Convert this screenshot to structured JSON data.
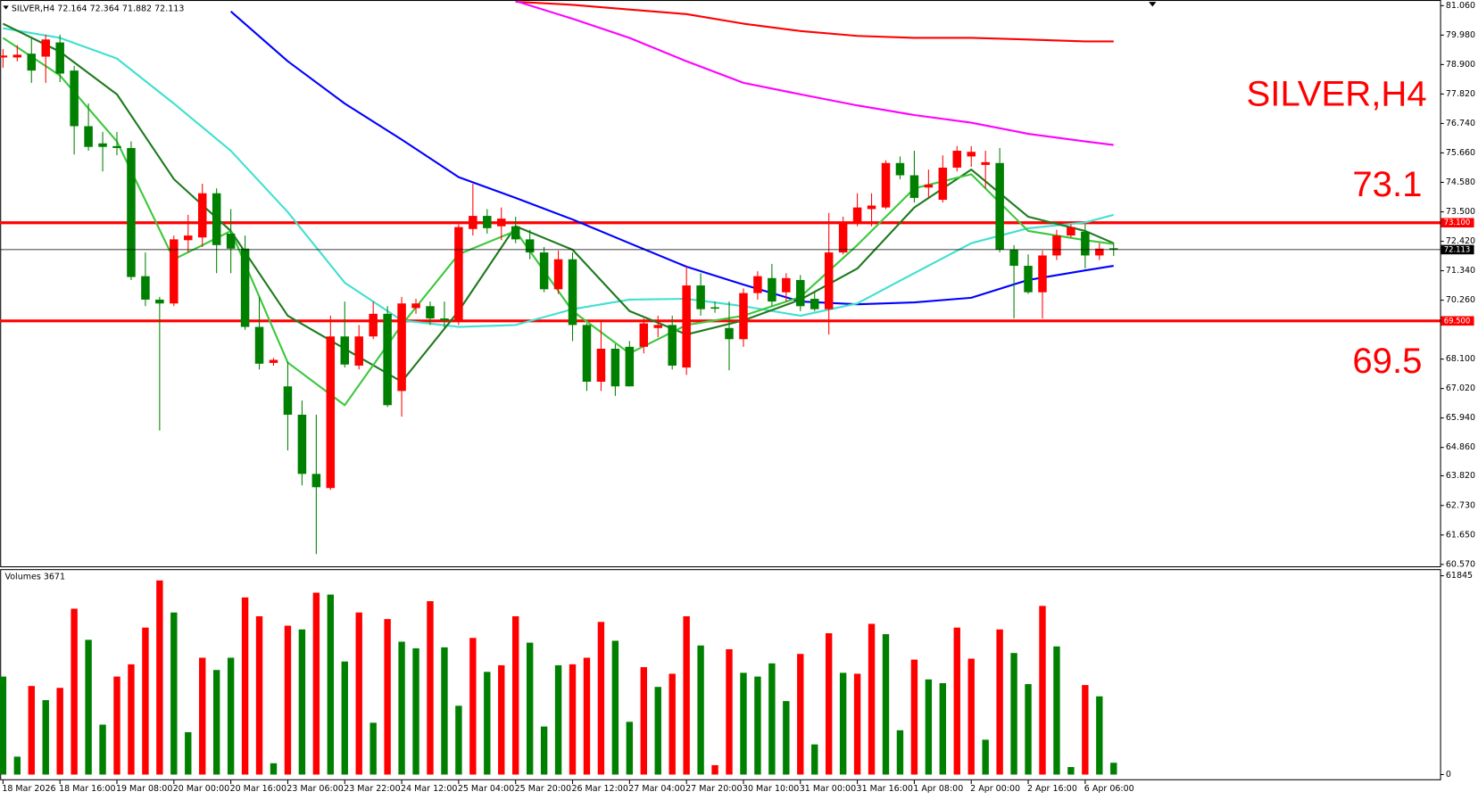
{
  "chart_data": [
    {
      "type": "candlestick",
      "symbol": "SILVER,H4",
      "categories": [
        "18 Mar 2026",
        null,
        null,
        null,
        "18 Mar 16:00",
        null,
        null,
        null,
        "19 Mar 08:00",
        null,
        null,
        null,
        "20 Mar 00:00",
        null,
        null,
        null,
        "20 Mar 16:00",
        null,
        null,
        null,
        "23 Mar 06:00",
        null,
        null,
        null,
        "23 Mar 22:00",
        null,
        null,
        null,
        "24 Mar 12:00",
        null,
        null,
        null,
        "25 Mar 04:00",
        null,
        null,
        null,
        "25 Mar 20:00",
        null,
        null,
        null,
        "26 Mar 12:00",
        null,
        null,
        null,
        "27 Mar 04:00",
        null,
        null,
        null,
        "27 Mar 20:00",
        null,
        null,
        null,
        "30 Mar 10:00",
        null,
        null,
        null,
        "31 Mar 00:00",
        null,
        null,
        null,
        "31 Mar 16:00",
        null,
        null,
        null,
        "1 Apr 08:00",
        null,
        null,
        null,
        "2 Apr 00:00",
        null,
        null,
        null,
        "2 Apr 16:00",
        null,
        null,
        null,
        "6 Apr 06:00",
        null,
        null
      ],
      "open": [
        79.16,
        79.16,
        79.3,
        79.19,
        79.71,
        78.68,
        76.64,
        76.01,
        75.91,
        75.84,
        71.14,
        70.28,
        70.14,
        72.46,
        72.56,
        74.18,
        72.7,
        72.15,
        69.28,
        67.96,
        67.1,
        66.06,
        63.89,
        63.37,
        68.93,
        67.86,
        68.93,
        69.76,
        66.93,
        69.97,
        70.04,
        69.59,
        69.52,
        72.87,
        73.35,
        72.97,
        72.97,
        72.49,
        72.01,
        70.66,
        71.76,
        69.35,
        67.27,
        68.48,
        68.55,
        68.55,
        69.24,
        69.35,
        67.79,
        70.8,
        70.0,
        69.24,
        68.83,
        70.52,
        71.07,
        70.55,
        71.0,
        70.31,
        69.93,
        72.01,
        73.08,
        73.6,
        73.66,
        75.29,
        74.84,
        74.39,
        73.94,
        75.12,
        75.53,
        75.22,
        75.29,
        72.11,
        71.52,
        70.55,
        71.9,
        72.63,
        72.77,
        71.9,
        72.164
      ],
      "high": [
        79.47,
        79.61,
        79.88,
        79.99,
        79.99,
        78.85,
        77.47,
        76.43,
        76.43,
        76.08,
        72.01,
        70.38,
        72.63,
        73.39,
        74.53,
        74.36,
        73.6,
        72.63,
        70.38,
        68.14,
        68.0,
        66.58,
        66.06,
        69.69,
        70.21,
        69.35,
        70.21,
        70.04,
        70.38,
        70.31,
        70.21,
        70.21,
        73.04,
        74.53,
        73.6,
        73.66,
        73.32,
        72.84,
        72.21,
        72.08,
        72.01,
        69.41,
        69.52,
        68.65,
        68.76,
        69.59,
        69.69,
        69.69,
        71.49,
        71.25,
        70.21,
        70.21,
        70.69,
        71.32,
        71.59,
        71.25,
        71.18,
        70.55,
        73.46,
        73.32,
        74.18,
        74.18,
        75.39,
        75.53,
        75.74,
        75.05,
        75.57,
        75.91,
        75.91,
        75.74,
        75.84,
        72.28,
        71.94,
        72.08,
        72.84,
        73.04,
        73.04,
        72.35,
        72.364
      ],
      "low": [
        78.78,
        79.02,
        78.23,
        78.23,
        78.26,
        75.6,
        75.74,
        74.98,
        75.57,
        71.0,
        70.04,
        65.48,
        70.04,
        72.01,
        72.21,
        71.25,
        71.25,
        69.17,
        67.72,
        67.86,
        64.75,
        63.47,
        60.95,
        63.3,
        67.79,
        67.72,
        68.83,
        66.34,
        65.99,
        69.76,
        69.35,
        69.24,
        69.35,
        72.63,
        72.7,
        72.46,
        72.35,
        71.76,
        70.55,
        70.49,
        68.76,
        66.93,
        66.93,
        66.75,
        67.1,
        68.31,
        68.9,
        67.72,
        67.52,
        69.69,
        69.8,
        67.69,
        68.55,
        70.28,
        70.04,
        70.21,
        69.86,
        69.86,
        69.0,
        71.94,
        72.97,
        72.97,
        73.6,
        74.7,
        73.84,
        74.01,
        73.84,
        74.98,
        75.15,
        74.36,
        72.01,
        69.59,
        70.49,
        69.59,
        71.73,
        72.56,
        71.42,
        71.73,
        71.882
      ],
      "close": [
        79.23,
        79.26,
        78.68,
        79.82,
        78.57,
        76.64,
        75.88,
        75.88,
        75.84,
        71.11,
        70.28,
        70.14,
        72.49,
        72.63,
        74.18,
        72.28,
        72.15,
        69.28,
        67.93,
        68.07,
        66.06,
        63.89,
        63.4,
        68.93,
        67.9,
        68.93,
        69.76,
        66.41,
        70.14,
        70.14,
        69.59,
        69.52,
        72.94,
        73.35,
        72.9,
        73.25,
        72.49,
        72.01,
        70.66,
        71.76,
        69.35,
        67.27,
        68.48,
        67.1,
        67.1,
        69.41,
        69.35,
        67.86,
        70.8,
        69.93,
        69.97,
        68.83,
        70.52,
        71.14,
        70.21,
        71.07,
        70.04,
        69.93,
        72.01,
        73.11,
        73.66,
        73.73,
        75.29,
        74.84,
        74.01,
        74.5,
        75.12,
        75.74,
        75.7,
        75.32,
        72.11,
        71.52,
        70.55,
        71.9,
        72.63,
        72.94,
        71.9,
        72.15,
        72.113
      ],
      "up_color": "#ff0000",
      "down_color": "#008000",
      "overlay_x": [
        0,
        4,
        8,
        12,
        16,
        20,
        24,
        28,
        32,
        36,
        40,
        44,
        48,
        52,
        56,
        60,
        64,
        68,
        72,
        76,
        78
      ],
      "overlays": [
        {
          "color": "#ff0000",
          "values": [
            null,
            null,
            null,
            null,
            null,
            null,
            null,
            null,
            null,
            81.2,
            81.09,
            80.92,
            80.75,
            80.4,
            80.13,
            79.95,
            79.88,
            79.88,
            79.82,
            79.75,
            79.75
          ]
        },
        {
          "color": "#ff00ff",
          "values": [
            null,
            null,
            null,
            null,
            null,
            null,
            null,
            null,
            null,
            81.23,
            80.58,
            79.88,
            79.02,
            78.23,
            77.81,
            77.4,
            77.05,
            76.77,
            76.36,
            76.08,
            75.95
          ]
        },
        {
          "color": "#0000ff",
          "values": [
            null,
            null,
            null,
            null,
            80.85,
            79.02,
            77.47,
            76.15,
            74.77,
            74.01,
            73.22,
            72.35,
            71.49,
            70.83,
            70.21,
            70.11,
            70.18,
            70.35,
            71.0,
            71.35,
            71.52
          ]
        },
        {
          "color": "#40e0d0",
          "values": [
            80.23,
            79.88,
            79.12,
            77.47,
            75.74,
            73.49,
            70.9,
            69.52,
            69.28,
            69.35,
            69.93,
            70.28,
            70.31,
            70.04,
            69.69,
            70.14,
            71.25,
            72.35,
            72.9,
            73.11,
            73.39
          ]
        },
        {
          "color": "#1f7a1f",
          "values": [
            80.4,
            79.37,
            77.81,
            74.7,
            72.8,
            69.69,
            68.48,
            67.27,
            69.86,
            72.97,
            72.11,
            69.86,
            69.0,
            69.52,
            70.28,
            71.42,
            73.66,
            75.05,
            73.32,
            72.8,
            72.35
          ]
        },
        {
          "color": "#3cc83c",
          "values": [
            79.88,
            78.5,
            76.08,
            71.76,
            72.8,
            67.97,
            66.41,
            69.35,
            71.94,
            72.8,
            69.86,
            68.31,
            69.35,
            69.69,
            70.38,
            72.28,
            74.36,
            74.88,
            72.8,
            72.46,
            72.32
          ]
        }
      ],
      "levels": [
        {
          "value": 73.1,
          "label": "73.100"
        },
        {
          "value": 69.5,
          "label": "69.500"
        }
      ],
      "level_color": "#ff0000",
      "ylim": [
        60.57,
        81.06
      ],
      "yticks": [
        {
          "value": 81.06,
          "label": "81.060"
        },
        {
          "value": 79.98,
          "label": "79.980"
        },
        {
          "value": 78.9,
          "label": "78.900"
        },
        {
          "value": 77.82,
          "label": "77.820"
        },
        {
          "value": 76.74,
          "label": "76.740"
        },
        {
          "value": 75.66,
          "label": "75.660"
        },
        {
          "value": 74.58,
          "label": "74.580"
        },
        {
          "value": 73.5,
          "label": "73.500"
        },
        {
          "value": 72.42,
          "label": "72.420"
        },
        {
          "value": 71.34,
          "label": "71.340"
        },
        {
          "value": 70.26,
          "label": "70.260"
        },
        {
          "value": 68.1,
          "label": "68.100"
        },
        {
          "value": 67.02,
          "label": "67.020"
        },
        {
          "value": 65.94,
          "label": "65.940"
        },
        {
          "value": 64.86,
          "label": "64.860"
        },
        {
          "value": 63.82,
          "label": "63.820"
        },
        {
          "value": 62.73,
          "label": "62.730"
        },
        {
          "value": 61.65,
          "label": "61.650"
        },
        {
          "value": 60.57,
          "label": "60.570"
        }
      ]
    },
    {
      "type": "volume",
      "title": "Volumes",
      "values": [
        30480,
        5570,
        27550,
        23150,
        26970,
        51590,
        41910,
        15530,
        30480,
        34290,
        45720,
        60380,
        50410,
        13190,
        36340,
        32530,
        36340,
        55100,
        49240,
        3520,
        46310,
        45140,
        56570,
        55980,
        35170,
        50410,
        16120,
        48360,
        41330,
        39270,
        53930,
        39570,
        21400,
        42500,
        31950,
        34000,
        49240,
        41030,
        14950,
        34000,
        34300,
        36340,
        47480,
        41620,
        16410,
        33410,
        27260,
        31360,
        49240,
        40150,
        2930,
        38980,
        31650,
        30480,
        34590,
        22860,
        37520,
        9380,
        43960,
        31650,
        31360,
        46890,
        43670,
        13780,
        35760,
        29600,
        28430,
        45720,
        36050,
        10840,
        45140,
        37810,
        28140,
        52460,
        39860,
        2340,
        27840,
        24330,
        3671
      ],
      "colors": [
        "#008000",
        "#008000",
        "#ff0000",
        "#008000",
        "#ff0000",
        "#ff0000",
        "#008000",
        "#008000",
        "#ff0000",
        "#ff0000",
        "#ff0000",
        "#ff0000",
        "#008000",
        "#008000",
        "#ff0000",
        "#008000",
        "#008000",
        "#ff0000",
        "#ff0000",
        "#008000",
        "#ff0000",
        "#008000",
        "#ff0000",
        "#008000",
        "#008000",
        "#ff0000",
        "#008000",
        "#ff0000",
        "#008000",
        "#008000",
        "#ff0000",
        "#008000",
        "#008000",
        "#ff0000",
        "#008000",
        "#ff0000",
        "#ff0000",
        "#008000",
        "#008000",
        "#008000",
        "#ff0000",
        "#ff0000",
        "#ff0000",
        "#008000",
        "#008000",
        "#ff0000",
        "#008000",
        "#ff0000",
        "#ff0000",
        "#008000",
        "#ff0000",
        "#ff0000",
        "#008000",
        "#008000",
        "#008000",
        "#008000",
        "#ff0000",
        "#008000",
        "#ff0000",
        "#008000",
        "#ff0000",
        "#ff0000",
        "#008000",
        "#008000",
        "#ff0000",
        "#008000",
        "#008000",
        "#ff0000",
        "#ff0000",
        "#008000",
        "#ff0000",
        "#008000",
        "#008000",
        "#ff0000",
        "#008000",
        "#008000",
        "#ff0000",
        "#008000",
        "#008000"
      ],
      "ylim": [
        0,
        61845
      ],
      "yticks": [
        0,
        61845
      ]
    }
  ]
}
